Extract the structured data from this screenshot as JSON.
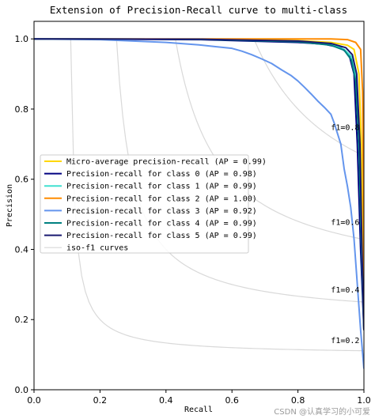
{
  "chart_data": {
    "type": "line",
    "title": "Extension of Precision-Recall curve to multi-class",
    "xlabel": "Recall",
    "ylabel": "Precision",
    "xlim": [
      0.0,
      1.0
    ],
    "ylim": [
      0.0,
      1.05
    ],
    "x_ticks": [
      "0.0",
      "0.2",
      "0.4",
      "0.6",
      "0.8",
      "1.0"
    ],
    "y_ticks": [
      "0.0",
      "0.2",
      "0.4",
      "0.6",
      "0.8",
      "1.0"
    ],
    "grid": false,
    "legend_position": "center-left",
    "iso_f1": {
      "legend_label": "iso-f1 curves",
      "color": "#d9d9d9",
      "values": [
        0.2,
        0.4,
        0.6,
        0.8
      ],
      "labels": [
        "f1=0.2",
        "f1=0.4",
        "f1=0.6",
        "f1=0.8"
      ]
    },
    "series": [
      {
        "name": "Micro-average precision-recall (AP = 0.99)",
        "color": "#ffd700",
        "points": [
          [
            0.0,
            1.0
          ],
          [
            0.5,
            0.999
          ],
          [
            0.8,
            0.995
          ],
          [
            0.9,
            0.99
          ],
          [
            0.95,
            0.982
          ],
          [
            0.97,
            0.97
          ],
          [
            0.985,
            0.9
          ],
          [
            0.992,
            0.7
          ],
          [
            0.996,
            0.4
          ],
          [
            1.0,
            0.17
          ]
        ]
      },
      {
        "name": "Precision-recall for class 0 (AP = 0.98)",
        "color": "#000080",
        "points": [
          [
            0.0,
            1.0
          ],
          [
            0.5,
            0.998
          ],
          [
            0.8,
            0.99
          ],
          [
            0.88,
            0.985
          ],
          [
            0.93,
            0.975
          ],
          [
            0.955,
            0.955
          ],
          [
            0.97,
            0.9
          ],
          [
            0.98,
            0.7
          ],
          [
            0.99,
            0.4
          ],
          [
            1.0,
            0.17
          ]
        ]
      },
      {
        "name": "Precision-recall for class 1 (AP = 0.99)",
        "color": "#40e0d0",
        "points": [
          [
            0.0,
            1.0
          ],
          [
            0.5,
            0.999
          ],
          [
            0.8,
            0.993
          ],
          [
            0.9,
            0.985
          ],
          [
            0.94,
            0.97
          ],
          [
            0.962,
            0.95
          ],
          [
            0.975,
            0.9
          ],
          [
            0.985,
            0.7
          ],
          [
            0.993,
            0.4
          ],
          [
            1.0,
            0.17
          ]
        ]
      },
      {
        "name": "Precision-recall for class 2 (AP = 1.00)",
        "color": "#ff8c00",
        "points": [
          [
            0.0,
            1.0
          ],
          [
            0.5,
            1.0
          ],
          [
            0.8,
            1.0
          ],
          [
            0.9,
            1.0
          ],
          [
            0.95,
            0.998
          ],
          [
            0.975,
            0.99
          ],
          [
            0.99,
            0.97
          ],
          [
            0.996,
            0.85
          ],
          [
            0.999,
            0.5
          ],
          [
            1.0,
            0.17
          ]
        ]
      },
      {
        "name": "Precision-recall for class 3 (AP = 0.92)",
        "color": "#6495ed",
        "points": [
          [
            0.0,
            1.0
          ],
          [
            0.2,
            0.998
          ],
          [
            0.4,
            0.99
          ],
          [
            0.5,
            0.983
          ],
          [
            0.55,
            0.978
          ],
          [
            0.6,
            0.973
          ],
          [
            0.63,
            0.965
          ],
          [
            0.66,
            0.955
          ],
          [
            0.69,
            0.943
          ],
          [
            0.72,
            0.93
          ],
          [
            0.75,
            0.912
          ],
          [
            0.78,
            0.895
          ],
          [
            0.8,
            0.88
          ],
          [
            0.82,
            0.862
          ],
          [
            0.84,
            0.843
          ],
          [
            0.86,
            0.823
          ],
          [
            0.88,
            0.805
          ],
          [
            0.9,
            0.785
          ],
          [
            0.91,
            0.76
          ],
          [
            0.92,
            0.73
          ],
          [
            0.93,
            0.7
          ],
          [
            0.94,
            0.63
          ],
          [
            0.95,
            0.58
          ],
          [
            0.96,
            0.52
          ],
          [
            0.97,
            0.43
          ],
          [
            0.98,
            0.3
          ],
          [
            0.99,
            0.17
          ],
          [
            1.0,
            0.06
          ]
        ]
      },
      {
        "name": "Precision-recall for class 4 (AP = 0.99)",
        "color": "#008080",
        "points": [
          [
            0.0,
            1.0
          ],
          [
            0.5,
            0.999
          ],
          [
            0.8,
            0.992
          ],
          [
            0.9,
            0.982
          ],
          [
            0.94,
            0.968
          ],
          [
            0.962,
            0.94
          ],
          [
            0.975,
            0.88
          ],
          [
            0.985,
            0.7
          ],
          [
            0.993,
            0.4
          ],
          [
            1.0,
            0.17
          ]
        ]
      },
      {
        "name": "Precision-recall for class 5 (AP = 0.99)",
        "color": "#191970",
        "points": [
          [
            0.0,
            1.0
          ],
          [
            0.5,
            0.999
          ],
          [
            0.8,
            0.994
          ],
          [
            0.9,
            0.987
          ],
          [
            0.945,
            0.975
          ],
          [
            0.965,
            0.955
          ],
          [
            0.978,
            0.9
          ],
          [
            0.988,
            0.7
          ],
          [
            0.994,
            0.4
          ],
          [
            1.0,
            0.17
          ]
        ]
      }
    ]
  },
  "watermark": "CSDN @认真学习的小可爱"
}
